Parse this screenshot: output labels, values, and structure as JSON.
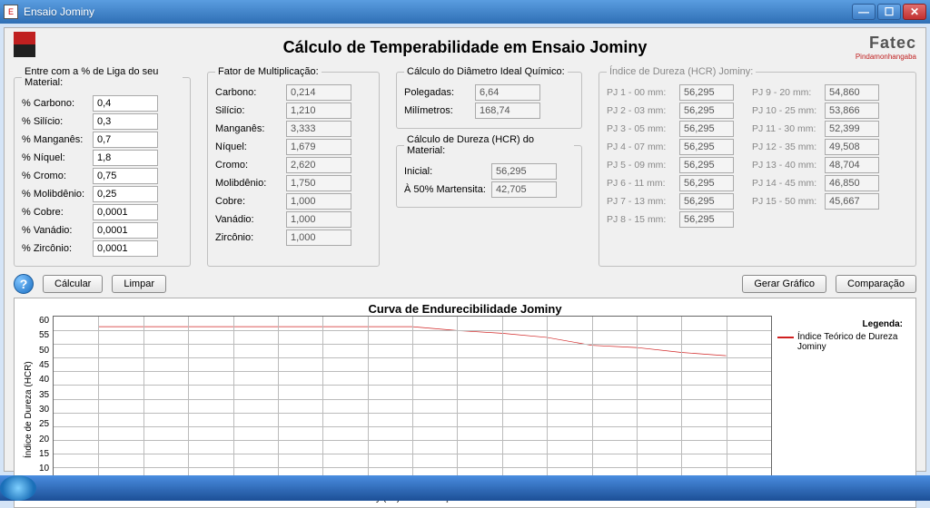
{
  "window": {
    "title": "Ensaio Jominy"
  },
  "header": {
    "main_title": "Cálculo de Temperabilidade em Ensaio Jominy",
    "brand": "Fatec",
    "brand_sub": "Pindamonhangaba"
  },
  "inputs": {
    "legend": "Entre com a % de Liga do seu Material:",
    "rows": [
      {
        "label": "% Carbono:",
        "value": "0,4"
      },
      {
        "label": "% Silício:",
        "value": "0,3"
      },
      {
        "label": "% Manganês:",
        "value": "0,7"
      },
      {
        "label": "% Níquel:",
        "value": "1,8"
      },
      {
        "label": "% Cromo:",
        "value": "0,75"
      },
      {
        "label": "% Molibdênio:",
        "value": "0,25"
      },
      {
        "label": "% Cobre:",
        "value": "0,0001"
      },
      {
        "label": "% Vanádio:",
        "value": "0,0001"
      },
      {
        "label": "% Zircônio:",
        "value": "0,0001"
      }
    ]
  },
  "factors": {
    "legend": "Fator de Multiplicação:",
    "rows": [
      {
        "label": "Carbono:",
        "value": "0,214"
      },
      {
        "label": "Silício:",
        "value": "1,210"
      },
      {
        "label": "Manganês:",
        "value": "3,333"
      },
      {
        "label": "Níquel:",
        "value": "1,679"
      },
      {
        "label": "Cromo:",
        "value": "2,620"
      },
      {
        "label": "Molibdênio:",
        "value": "1,750"
      },
      {
        "label": "Cobre:",
        "value": "1,000"
      },
      {
        "label": "Vanádio:",
        "value": "1,000"
      },
      {
        "label": "Zircônio:",
        "value": "1,000"
      }
    ]
  },
  "diameter": {
    "legend": "Cálculo do Diâmetro Ideal Químico:",
    "rows": [
      {
        "label": "Polegadas:",
        "value": "6,64"
      },
      {
        "label": "Milímetros:",
        "value": "168,74"
      }
    ]
  },
  "hardness": {
    "legend": "Cálculo de Dureza (HCR) do Material:",
    "rows": [
      {
        "label": "Inicial:",
        "value": "56,295"
      },
      {
        "label": "À 50% Martensita:",
        "value": "42,705"
      }
    ]
  },
  "hcr": {
    "legend": "Índice de Dureza (HCR) Jominy:",
    "left": [
      {
        "label": "PJ 1 - 00 mm:",
        "value": "56,295"
      },
      {
        "label": "PJ 2 - 03 mm:",
        "value": "56,295"
      },
      {
        "label": "PJ 3 - 05 mm:",
        "value": "56,295"
      },
      {
        "label": "PJ 4 - 07 mm:",
        "value": "56,295"
      },
      {
        "label": "PJ 5 - 09 mm:",
        "value": "56,295"
      },
      {
        "label": "PJ 6 - 11 mm:",
        "value": "56,295"
      },
      {
        "label": "PJ 7 - 13 mm:",
        "value": "56,295"
      },
      {
        "label": "PJ 8 - 15 mm:",
        "value": "56,295"
      }
    ],
    "right": [
      {
        "label": "PJ 9 - 20 mm:",
        "value": "54,860"
      },
      {
        "label": "PJ 10 - 25 mm:",
        "value": "53,866"
      },
      {
        "label": "PJ 11 - 30 mm:",
        "value": "52,399"
      },
      {
        "label": "PJ 12 - 35 mm:",
        "value": "49,508"
      },
      {
        "label": "PJ 13 - 40 mm:",
        "value": "48,704"
      },
      {
        "label": "PJ 14 - 45 mm:",
        "value": "46,850"
      },
      {
        "label": "PJ 15 - 50 mm:",
        "value": "45,667"
      }
    ]
  },
  "buttons": {
    "help": "?",
    "calc": "Cálcular",
    "clear": "Limpar",
    "chart": "Gerar Gráfico",
    "compare": "Comparação"
  },
  "chart": {
    "title": "Curva de Endurecibilidade Jominy",
    "ylabel": "Índice de Dureza (HCR)",
    "xlabel": "Pontos Jominy (PJ) de Verificação de Dureza",
    "xmin": 0,
    "xmax": 16,
    "ymin": 0,
    "ymax": 60,
    "ystep": 5,
    "legend_title": "Legenda:",
    "legend_item": "Índice Teórico de Dureza Jominy",
    "series_color": "#d02020",
    "grid_color": "#bbbbbb",
    "points": [
      {
        "x": 1,
        "y": 56.3
      },
      {
        "x": 2,
        "y": 56.3
      },
      {
        "x": 3,
        "y": 56.3
      },
      {
        "x": 4,
        "y": 56.3
      },
      {
        "x": 5,
        "y": 56.3
      },
      {
        "x": 6,
        "y": 56.3
      },
      {
        "x": 7,
        "y": 56.3
      },
      {
        "x": 8,
        "y": 56.3
      },
      {
        "x": 9,
        "y": 54.9
      },
      {
        "x": 10,
        "y": 53.9
      },
      {
        "x": 11,
        "y": 52.4
      },
      {
        "x": 12,
        "y": 49.5
      },
      {
        "x": 13,
        "y": 48.7
      },
      {
        "x": 14,
        "y": 46.9
      },
      {
        "x": 15,
        "y": 45.7
      }
    ]
  }
}
